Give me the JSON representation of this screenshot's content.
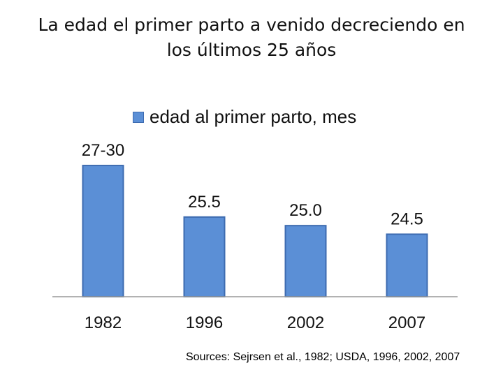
{
  "title_line1": "La edad el primer parto a venido decreciendo en",
  "title_line2": "los últimos 25 años",
  "source": "Sources: Sejrsen et al., 1982; USDA, 1996, 2002, 2007",
  "colors": {
    "bar": "#5b8fd6",
    "bar_border": "#3d6bb0",
    "axis": "#999999"
  },
  "chart_data": {
    "type": "bar",
    "title": "La edad el primer parto a venido decreciendo en los últimos 25 años",
    "categories": [
      "1982",
      "1996",
      "2002",
      "2007"
    ],
    "series": [
      {
        "name": "edad al primer parto, mes",
        "values": [
          28.5,
          25.5,
          25.0,
          24.5
        ]
      }
    ],
    "data_labels": [
      "27-30",
      "25.5",
      "25.0",
      "24.5"
    ],
    "legend_position": "top",
    "grid": false
  }
}
